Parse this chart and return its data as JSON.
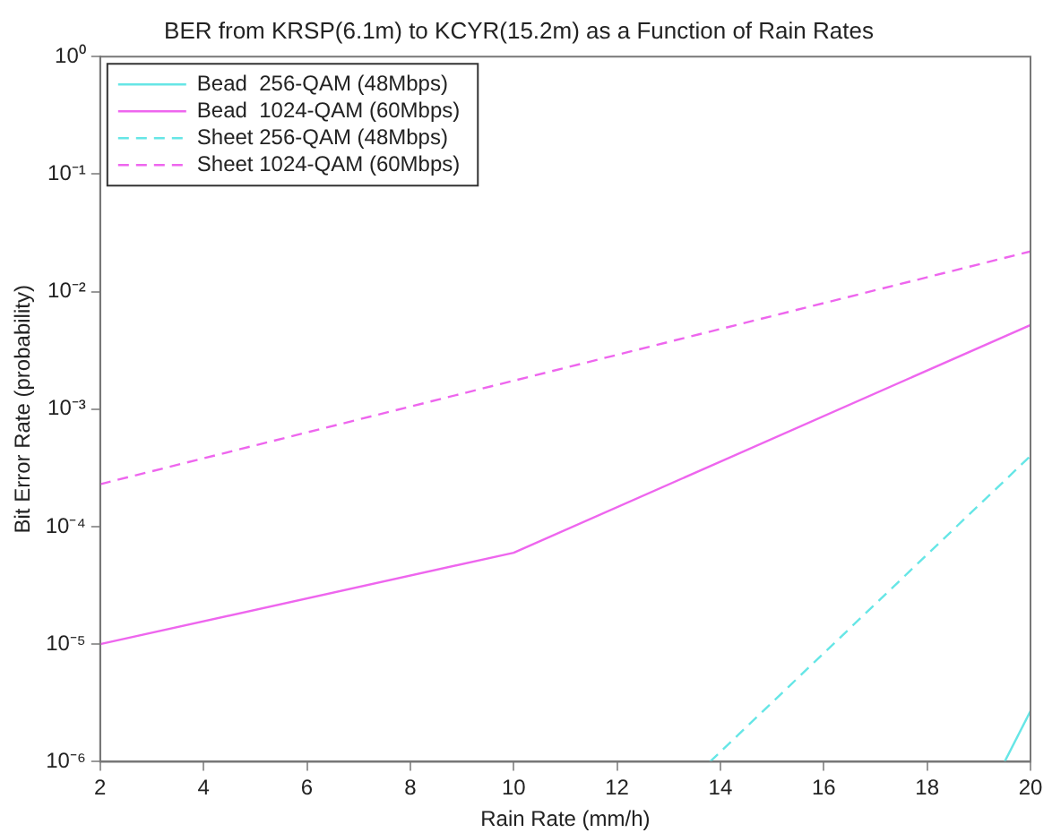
{
  "chart_data": {
    "type": "line",
    "title": "BER from KRSP(6.1m) to KCYR(15.2m) as a Function of Rain Rates",
    "xlabel": "Rain Rate (mm/h)",
    "ylabel": "Bit Error Rate (probability)",
    "log": "y",
    "xlim": [
      2,
      20
    ],
    "xticks": [
      2,
      4,
      6,
      8,
      10,
      12,
      14,
      16,
      18,
      20
    ],
    "ylim": [
      1e-06,
      1
    ],
    "yticks": [
      {
        "value": 1e-06,
        "label": "10⁻⁶"
      },
      {
        "value": 1e-05,
        "label": "10⁻⁵"
      },
      {
        "value": 0.0001,
        "label": "10⁻⁴"
      },
      {
        "value": 0.001,
        "label": "10⁻³"
      },
      {
        "value": 0.01,
        "label": "10⁻²"
      },
      {
        "value": 0.1,
        "label": "10⁻¹"
      },
      {
        "value": 1,
        "label": "10⁰"
      }
    ],
    "grid": false,
    "legend": "top left",
    "marker": "none",
    "series": [
      {
        "name": "Bead  256-QAM (48Mbps)",
        "color": "#66e6e6",
        "line_style": "solid",
        "x": [
          19.5,
          20
        ],
        "values": [
          1e-06,
          2.7e-06
        ]
      },
      {
        "name": "Bead  1024-QAM (60Mbps)",
        "color": "#ee66ee",
        "line_style": "solid",
        "x": [
          2,
          10,
          20
        ],
        "values": [
          1e-05,
          6e-05,
          0.0052
        ]
      },
      {
        "name": "Sheet 256-QAM (48Mbps)",
        "color": "#66e6e6",
        "line_style": "dashed",
        "x": [
          13.8,
          20
        ],
        "values": [
          1e-06,
          0.0004
        ]
      },
      {
        "name": "Sheet 1024-QAM (60Mbps)",
        "color": "#ee66ee",
        "line_style": "dashed",
        "x": [
          2,
          20
        ],
        "values": [
          0.00023,
          0.022
        ]
      }
    ]
  }
}
